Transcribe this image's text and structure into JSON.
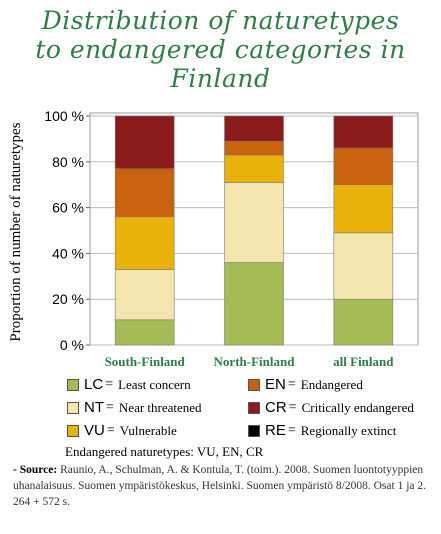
{
  "title_lines": [
    "Distribution of naturetypes",
    "to endangered categories in",
    "Finland"
  ],
  "chart_data": {
    "type": "bar",
    "stacked": true,
    "title": "Distribution of naturetypes to endangered categories in Finland",
    "ylabel": "Proportion of number of naturetypes",
    "xlabel": "",
    "ylim": [
      0,
      100
    ],
    "yticks": [
      0,
      20,
      40,
      60,
      80,
      100
    ],
    "ytick_labels": [
      "0 %",
      "20 %",
      "40 %",
      "60 %",
      "80 %",
      "100 %"
    ],
    "categories": [
      "South-Finland",
      "North-Finland",
      "all Finland"
    ],
    "series": [
      {
        "code": "LC",
        "name": "Least concern",
        "color": "#a5bb55",
        "values": [
          11,
          36,
          20
        ]
      },
      {
        "code": "NT",
        "name": "Near threatened",
        "color": "#f4e4ae",
        "values": [
          22,
          35,
          29
        ]
      },
      {
        "code": "VU",
        "name": "Vulnerable",
        "color": "#e8b20a",
        "values": [
          23,
          12,
          21
        ]
      },
      {
        "code": "EN",
        "name": "Endangered",
        "color": "#c8620e",
        "values": [
          21,
          6,
          16
        ]
      },
      {
        "code": "CR",
        "name": "Critically endangered",
        "color": "#8b1a1a",
        "values": [
          23,
          11,
          14
        ]
      },
      {
        "code": "RE",
        "name": "Regionally extinct",
        "color": "#000000",
        "values": [
          0,
          0,
          0
        ]
      }
    ],
    "grid": true,
    "legend_position": "bottom"
  },
  "legend": {
    "equals": "=",
    "items": [
      {
        "code": "LC",
        "label": "Least concern",
        "color": "#a5bb55"
      },
      {
        "code": "EN",
        "label": "Endangered",
        "color": "#c8620e"
      },
      {
        "code": "NT",
        "label": "Near threatened",
        "color": "#f4e4ae"
      },
      {
        "code": "CR",
        "label": "Critically endangered",
        "color": "#8b1a1a"
      },
      {
        "code": "VU",
        "label": "Vulnerable",
        "color": "#e8b20a"
      },
      {
        "code": "RE",
        "label": "Regionally extinct",
        "color": "#000000"
      }
    ]
  },
  "note": "Endangered naturetypes: VU, EN, CR",
  "source": {
    "prefix": "- Source:",
    "text": "Raunio, A., Schulman, A. & Kontula, T. (toim.). 2008. Suomen luontotyyppien uhanalaisuus. Suomen ympäristökeskus, Helsinki. Suomen ympäristö 8/2008. Osat 1 ja 2. 264 + 572 s."
  }
}
